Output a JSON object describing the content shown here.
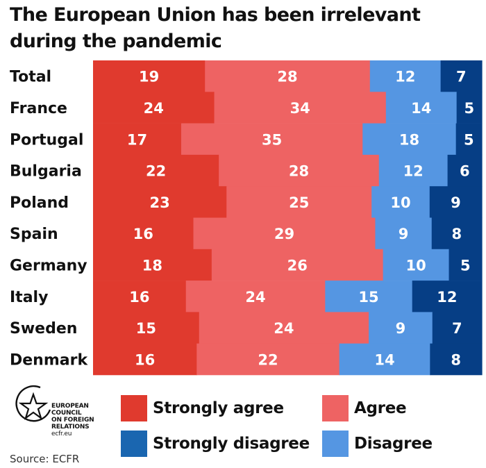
{
  "title": {
    "line1": "The European Union has been irrelevant",
    "line2": "during the pandemic"
  },
  "colors": {
    "strongly_agree": "#E03A2E",
    "agree": "#EE6363",
    "disagree": "#5596E2",
    "strongly_disagree": "#063E85",
    "legend_strongly_disagree": "#1A66B0"
  },
  "legend": {
    "strongly_agree": "Strongly agree",
    "agree": "Agree",
    "strongly_disagree": "Strongly disagree",
    "disagree": "Disagree"
  },
  "logo": {
    "icon": "star-circle-icon",
    "line1": "EUROPEAN",
    "line2": "COUNCIL",
    "line3": "ON FOREIGN",
    "line4": "RELATIONS",
    "site": "ecfr.eu"
  },
  "source": "Source: ECFR",
  "chart_data": {
    "type": "bar",
    "stacked": true,
    "orientation": "horizontal",
    "categories": [
      "Total",
      "France",
      "Portugal",
      "Bulgaria",
      "Poland",
      "Spain",
      "Germany",
      "Italy",
      "Sweden",
      "Denmark"
    ],
    "series": [
      {
        "name": "Strongly agree",
        "values": [
          19,
          24,
          17,
          22,
          23,
          16,
          18,
          16,
          15,
          16
        ]
      },
      {
        "name": "Agree",
        "values": [
          28,
          34,
          35,
          28,
          25,
          29,
          26,
          24,
          24,
          22
        ]
      },
      {
        "name": "Disagree",
        "values": [
          12,
          14,
          18,
          12,
          10,
          9,
          10,
          15,
          9,
          14
        ]
      },
      {
        "name": "Strongly disagree",
        "values": [
          7,
          5,
          5,
          6,
          9,
          8,
          5,
          12,
          7,
          8
        ]
      }
    ],
    "grid": false,
    "legend_position": "bottom"
  }
}
